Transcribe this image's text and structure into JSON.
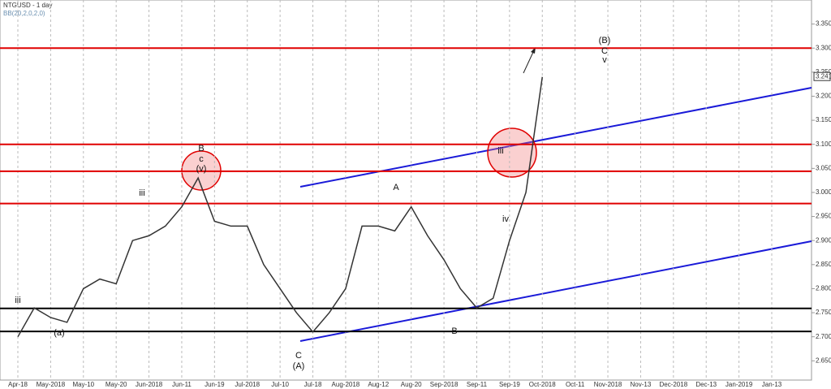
{
  "chart_data": {
    "type": "line",
    "title": "NTGUSD - 1 day",
    "subtitle": "BB(20,2,0,2,0)",
    "categories": [
      "Apr-18",
      null,
      "May-2018",
      null,
      "May-10",
      null,
      "May-20",
      null,
      "Jun-2018",
      null,
      "Jun-11",
      null,
      "Jun-19",
      null,
      "Jul-2018",
      null,
      "Jul-10",
      null,
      "Jul-18",
      null,
      "Aug-2018",
      null,
      "Aug-12",
      null,
      "Aug-20",
      null,
      "Sep-2018",
      null,
      "Sep-11",
      null,
      "Sep-19",
      null,
      "Oct-2018",
      null,
      "Oct-11",
      null,
      "Nov-2018",
      null,
      "Nov-13",
      null,
      "Dec-2018",
      null,
      "Dec-13",
      null,
      "Jan-2019",
      null,
      "Jan-13"
    ],
    "series": [
      {
        "name": "NTGUSD",
        "color": "#333333",
        "values": [
          2.7,
          2.76,
          2.74,
          2.73,
          2.8,
          2.82,
          2.81,
          2.9,
          2.91,
          2.93,
          2.97,
          3.03,
          2.94,
          2.93,
          2.93,
          2.85,
          2.8,
          2.75,
          2.71,
          2.75,
          2.8,
          2.93,
          2.93,
          2.92,
          2.97,
          2.91,
          2.86,
          2.8,
          2.76,
          2.78,
          2.9,
          3.0,
          3.24,
          null,
          null,
          null,
          null,
          null,
          null,
          null,
          null,
          null,
          null,
          null,
          null,
          null,
          null
        ]
      }
    ],
    "last_price": {
      "value": 3.241,
      "label": "3.241"
    },
    "levels": [
      {
        "value": 3.3,
        "color": "#e00000"
      },
      {
        "value": 3.1,
        "color": "#e00000"
      },
      {
        "value": 3.044,
        "color": "#e00000"
      },
      {
        "value": 2.977,
        "color": "#e00000"
      },
      {
        "value": 2.759,
        "color": "#000000"
      },
      {
        "value": 2.711,
        "color": "#000000"
      }
    ],
    "ylim": [
      2.61,
      3.4
    ],
    "yticks": [
      {
        "value": 2.65,
        "label": "2.650"
      },
      {
        "value": 2.7,
        "label": "2.700"
      },
      {
        "value": 2.75,
        "label": "2.750"
      },
      {
        "value": 2.8,
        "label": "2.800"
      },
      {
        "value": 2.85,
        "label": "2.850"
      },
      {
        "value": 2.9,
        "label": "2.900"
      },
      {
        "value": 2.95,
        "label": "2.950"
      },
      {
        "value": 3.0,
        "label": "3.000"
      },
      {
        "value": 3.05,
        "label": "3.050"
      },
      {
        "value": 3.1,
        "label": "3.100"
      },
      {
        "value": 3.15,
        "label": "3.150"
      },
      {
        "value": 3.2,
        "label": "3.200"
      },
      {
        "value": 3.25,
        "label": "3.250"
      },
      {
        "value": 3.3,
        "label": "3.300"
      },
      {
        "value": 3.35,
        "label": "3.350"
      }
    ],
    "annotations": [
      "(B)",
      "C",
      "v",
      "B",
      "c",
      "(v)",
      "A",
      "C",
      "(A)",
      "B",
      "iii",
      "iii",
      "iv",
      "iii",
      "(a)"
    ]
  }
}
